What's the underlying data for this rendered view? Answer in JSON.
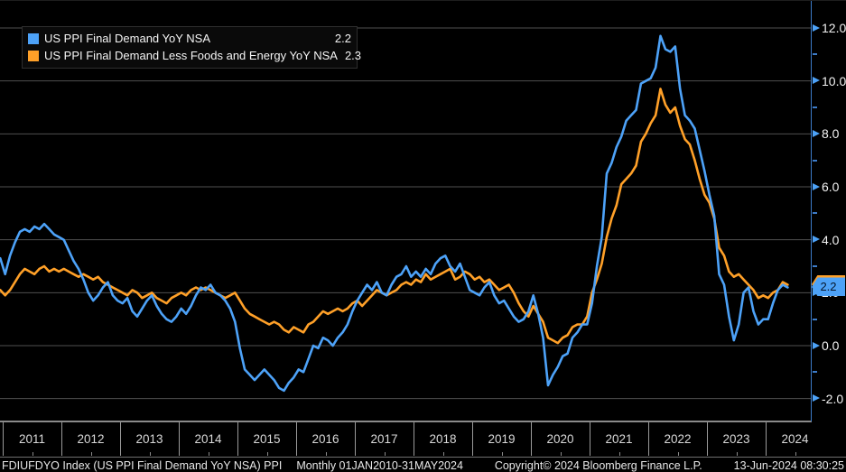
{
  "legend": {
    "rows": [
      {
        "label": "US PPI Final Demand YoY NSA",
        "value": "2.2",
        "color": "#4da2f8"
      },
      {
        "label": "US PPI Final Demand Less Foods and Energy YoY NSA",
        "value": "2.3",
        "color": "#ffa028"
      }
    ]
  },
  "status_bar": {
    "security": "FDIUFDYO Index (US PPI Final Demand YoY NSA) PPI",
    "period": "Monthly 01JAN2010-31MAY2024",
    "copyright": "Copyright© 2024 Bloomberg Finance L.P.",
    "timestamp": "13-Jun-2024 08:30:25"
  },
  "badges": [
    {
      "label": "2.3",
      "value": 2.3,
      "color": "#ffa028",
      "series": "core"
    },
    {
      "label": "2.2",
      "value": 2.2,
      "color": "#4da2f8",
      "series": "main"
    }
  ],
  "chart_data": {
    "type": "line",
    "title": "",
    "frequency": "monthly",
    "x_range": [
      "2010-12",
      "2024-05"
    ],
    "ylim": [
      -2.9,
      13.0
    ],
    "grid": "horizontal-major",
    "legend_position": "top-left",
    "axis_color": "#3d7cc9",
    "grid_color": "#4f4f4f",
    "y_ticks_major": [
      {
        "value": 12,
        "label": "12.0"
      },
      {
        "value": 10,
        "label": "10.0"
      },
      {
        "value": 8,
        "label": "8.0"
      },
      {
        "value": 6,
        "label": "6.0"
      },
      {
        "value": 4,
        "label": "4.0"
      },
      {
        "value": 2,
        "label": "2.0"
      },
      {
        "value": 0,
        "label": "0.0"
      },
      {
        "value": -2,
        "label": "-2.0"
      }
    ],
    "y_ticks_minor": [
      11,
      9,
      7,
      5,
      3,
      1,
      -1
    ],
    "x_tick_years": [
      2011,
      2012,
      2013,
      2014,
      2015,
      2016,
      2017,
      2018,
      2019,
      2020,
      2021,
      2022,
      2023,
      2024
    ],
    "series": [
      {
        "name": "US PPI Final Demand YoY NSA",
        "color": "#4da2f8",
        "start": "2010-12",
        "last_value": 2.2,
        "values": [
          3.3,
          2.7,
          3.4,
          3.9,
          4.3,
          4.4,
          4.3,
          4.5,
          4.4,
          4.6,
          4.4,
          4.2,
          4.1,
          4.0,
          3.6,
          3.2,
          2.9,
          2.5,
          2.0,
          1.7,
          1.9,
          2.2,
          2.4,
          1.9,
          1.7,
          1.6,
          1.8,
          1.3,
          1.1,
          1.4,
          1.7,
          1.9,
          1.5,
          1.2,
          1.0,
          0.9,
          1.1,
          1.4,
          1.2,
          1.5,
          1.9,
          2.2,
          2.1,
          2.3,
          2.0,
          1.9,
          1.7,
          1.4,
          0.9,
          -0.1,
          -0.9,
          -1.1,
          -1.3,
          -1.1,
          -0.9,
          -1.1,
          -1.3,
          -1.6,
          -1.7,
          -1.4,
          -1.2,
          -0.9,
          -1.0,
          -0.5,
          0.0,
          -0.1,
          0.3,
          0.2,
          0.0,
          0.3,
          0.5,
          0.8,
          1.3,
          1.7,
          2.0,
          2.3,
          2.1,
          2.4,
          2.0,
          1.9,
          2.3,
          2.6,
          2.7,
          3.0,
          2.6,
          2.8,
          2.6,
          2.9,
          2.7,
          3.1,
          3.3,
          3.4,
          3.0,
          2.8,
          3.1,
          2.6,
          2.1,
          2.0,
          1.9,
          2.2,
          2.4,
          1.9,
          1.6,
          1.7,
          1.4,
          1.1,
          0.9,
          1.0,
          1.3,
          1.9,
          1.2,
          0.3,
          -1.5,
          -1.1,
          -0.8,
          -0.4,
          -0.3,
          0.3,
          0.5,
          0.8,
          0.8,
          1.6,
          3.0,
          4.1,
          6.5,
          6.9,
          7.5,
          7.9,
          8.5,
          8.7,
          8.9,
          9.9,
          10.0,
          10.1,
          10.5,
          11.7,
          11.2,
          11.1,
          11.3,
          9.7,
          8.7,
          8.5,
          8.2,
          7.4,
          6.6,
          5.7,
          4.9,
          2.7,
          2.3,
          1.1,
          0.2,
          0.8,
          2.0,
          2.2,
          1.3,
          0.8,
          1.0,
          1.0,
          1.6,
          2.1,
          2.3,
          2.2
        ]
      },
      {
        "name": "US PPI Final Demand Less Foods and Energy YoY NSA",
        "color": "#ffa028",
        "start": "2010-12",
        "last_value": 2.3,
        "values": [
          2.1,
          1.9,
          2.1,
          2.4,
          2.7,
          2.9,
          2.8,
          2.7,
          2.9,
          3.0,
          2.8,
          2.9,
          2.8,
          2.9,
          2.8,
          2.7,
          2.6,
          2.7,
          2.6,
          2.5,
          2.6,
          2.4,
          2.3,
          2.2,
          2.1,
          2.0,
          1.9,
          2.1,
          2.0,
          1.8,
          1.9,
          2.0,
          1.8,
          1.7,
          1.6,
          1.8,
          1.9,
          2.0,
          1.9,
          2.1,
          2.2,
          2.1,
          2.2,
          2.1,
          2.0,
          1.9,
          1.8,
          1.9,
          2.0,
          1.7,
          1.4,
          1.2,
          1.1,
          1.0,
          0.9,
          0.8,
          0.9,
          0.8,
          0.6,
          0.5,
          0.7,
          0.6,
          0.5,
          0.8,
          0.9,
          1.1,
          1.3,
          1.2,
          1.3,
          1.4,
          1.3,
          1.4,
          1.6,
          1.7,
          1.5,
          1.7,
          1.9,
          2.1,
          2.0,
          1.9,
          2.0,
          2.1,
          2.3,
          2.4,
          2.3,
          2.5,
          2.4,
          2.7,
          2.5,
          2.6,
          2.7,
          2.8,
          2.9,
          2.5,
          2.6,
          2.8,
          2.7,
          2.5,
          2.6,
          2.4,
          2.5,
          2.3,
          2.1,
          2.2,
          2.3,
          2.0,
          1.6,
          1.3,
          1.1,
          1.5,
          1.2,
          0.9,
          0.3,
          0.2,
          0.1,
          0.3,
          0.4,
          0.7,
          0.8,
          0.8,
          1.1,
          2.0,
          2.5,
          3.1,
          4.1,
          4.8,
          5.3,
          6.1,
          6.3,
          6.5,
          6.8,
          7.7,
          8.0,
          8.4,
          8.7,
          9.7,
          9.1,
          8.8,
          9.0,
          8.3,
          7.8,
          7.6,
          7.0,
          6.3,
          5.7,
          5.4,
          4.8,
          3.7,
          3.4,
          2.8,
          2.6,
          2.7,
          2.5,
          2.3,
          2.1,
          1.8,
          1.9,
          1.8,
          2.0,
          2.1,
          2.4,
          2.3
        ]
      }
    ]
  }
}
